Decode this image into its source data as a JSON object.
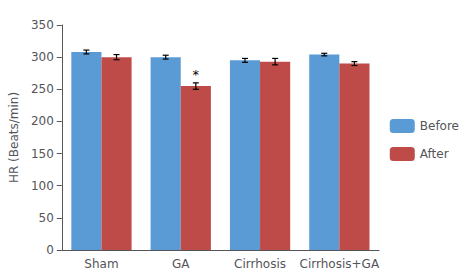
{
  "chart_data": {
    "type": "bar",
    "ylabel": "HR (Beats/min)",
    "categories": [
      "Sham",
      "GA",
      "Cirrhosis",
      "Cirrhosis+GA"
    ],
    "series": [
      {
        "name": "Before",
        "color": "#5B9BD5",
        "values": [
          308,
          300,
          295,
          304
        ],
        "errors": [
          3,
          3,
          3,
          2
        ]
      },
      {
        "name": "After",
        "color": "#BE4B48",
        "values": [
          300,
          255,
          293,
          290
        ],
        "errors": [
          4,
          5,
          5,
          3
        ]
      }
    ],
    "annotations": [
      {
        "text": "*",
        "category": "GA",
        "series": "After"
      }
    ],
    "ylim": [
      0,
      350
    ],
    "yticks": [
      0,
      50,
      100,
      150,
      200,
      250,
      300,
      350
    ],
    "grid": false,
    "legend": "right"
  }
}
